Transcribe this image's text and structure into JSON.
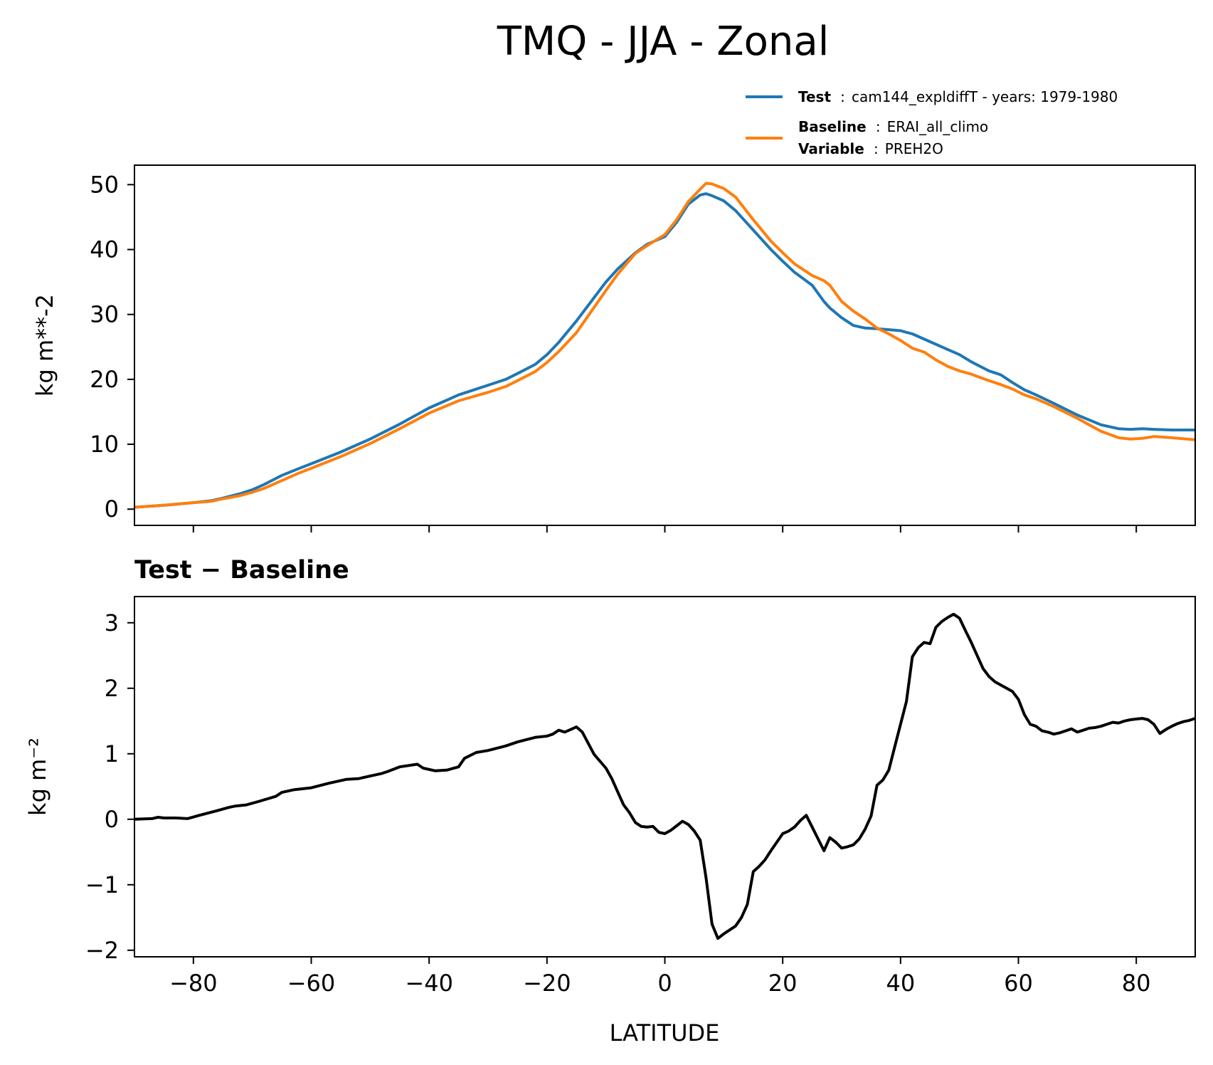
{
  "title": "TMQ - JJA - Zonal",
  "legend": {
    "test": {
      "key": "Test",
      "sep": ":",
      "value": "cam144_expldiffT - years: 1979-1980",
      "color": "#1f77b4"
    },
    "baseline": {
      "key": "Baseline",
      "sep": ":",
      "value": "ERAI_all_climo",
      "color": "#ff7f0e"
    },
    "variable": {
      "key": "Variable",
      "sep": ":",
      "value": "PREH2O"
    }
  },
  "chart_data": [
    {
      "type": "line",
      "title": "",
      "xlabel": "",
      "ylabel": "kg m**-2",
      "xlim": [
        -90,
        90
      ],
      "ylim": [
        -2.5,
        53
      ],
      "yticks": [
        0,
        10,
        20,
        30,
        40,
        50
      ],
      "grid": false,
      "legend_position": "above-right",
      "series": [
        {
          "name": "Test",
          "color": "#1f77b4",
          "x": [
            -90,
            -85,
            -80,
            -77,
            -75,
            -72,
            -70,
            -68,
            -65,
            -62,
            -60,
            -55,
            -50,
            -45,
            -40,
            -35,
            -30,
            -27,
            -25,
            -22,
            -20,
            -18,
            -15,
            -12,
            -10,
            -8,
            -5,
            -3,
            0,
            2,
            4,
            6,
            7,
            8,
            10,
            12,
            15,
            18,
            20,
            22,
            25,
            27,
            28,
            30,
            32,
            34,
            36,
            40,
            42,
            45,
            48,
            50,
            52,
            55,
            57,
            59,
            61,
            63,
            66,
            70,
            74,
            77,
            79,
            81,
            83,
            86,
            90
          ],
          "y": [
            0.3,
            0.6,
            1.0,
            1.3,
            1.7,
            2.4,
            3.0,
            3.8,
            5.2,
            6.3,
            7.0,
            8.8,
            10.8,
            13.1,
            15.6,
            17.6,
            19.1,
            20.0,
            20.9,
            22.3,
            23.8,
            25.7,
            29.0,
            32.6,
            35.0,
            37.0,
            39.5,
            40.8,
            42.0,
            44.2,
            47.0,
            48.4,
            48.6,
            48.3,
            47.5,
            46.0,
            43.0,
            40.0,
            38.2,
            36.5,
            34.5,
            32.0,
            31.0,
            29.5,
            28.3,
            27.9,
            27.8,
            27.5,
            27.0,
            25.8,
            24.6,
            23.8,
            22.7,
            21.3,
            20.7,
            19.5,
            18.4,
            17.6,
            16.3,
            14.5,
            13.0,
            12.4,
            12.3,
            12.4,
            12.3,
            12.2,
            12.2
          ]
        },
        {
          "name": "Baseline",
          "color": "#ff7f0e",
          "x": [
            -90,
            -85,
            -80,
            -77,
            -75,
            -72,
            -70,
            -68,
            -65,
            -62,
            -60,
            -55,
            -50,
            -45,
            -40,
            -35,
            -30,
            -27,
            -25,
            -22,
            -20,
            -18,
            -15,
            -12,
            -10,
            -8,
            -5,
            -3,
            0,
            2,
            4,
            6,
            7,
            8,
            10,
            12,
            15,
            18,
            20,
            22,
            25,
            27,
            28,
            30,
            32,
            34,
            36,
            38,
            40,
            42,
            44,
            46,
            48,
            50,
            52,
            55,
            57,
            59,
            61,
            63,
            66,
            70,
            74,
            77,
            79,
            81,
            83,
            86,
            90
          ],
          "y": [
            0.3,
            0.6,
            1.0,
            1.2,
            1.6,
            2.1,
            2.6,
            3.2,
            4.4,
            5.6,
            6.3,
            8.1,
            10.1,
            12.4,
            14.8,
            16.7,
            18.0,
            18.9,
            19.8,
            21.2,
            22.6,
            24.3,
            27.2,
            31.1,
            33.7,
            36.2,
            39.4,
            40.6,
            42.3,
            44.6,
            47.4,
            49.3,
            50.2,
            50.1,
            49.4,
            48.1,
            44.6,
            41.3,
            39.5,
            37.8,
            36.0,
            35.2,
            34.5,
            32.0,
            30.5,
            29.3,
            27.9,
            27.0,
            26.0,
            24.8,
            24.2,
            23.0,
            22.0,
            21.3,
            20.8,
            19.8,
            19.2,
            18.5,
            17.6,
            17.0,
            15.8,
            14.0,
            12.0,
            11.0,
            10.8,
            10.9,
            11.2,
            11.0,
            10.7
          ]
        }
      ]
    },
    {
      "type": "line",
      "title": "Test − Baseline",
      "xlabel": "LATITUDE",
      "ylabel": "kg m⁻²",
      "xlim": [
        -90,
        90
      ],
      "ylim": [
        -2.1,
        3.4
      ],
      "xticks": [
        -80,
        -60,
        -40,
        -20,
        0,
        20,
        40,
        60,
        80
      ],
      "xtick_labels": [
        "−80",
        "−60",
        "−40",
        "−20",
        "0",
        "20",
        "40",
        "60",
        "80"
      ],
      "yticks": [
        -2,
        -1,
        0,
        1,
        2,
        3
      ],
      "ytick_labels": [
        "−2",
        "−1",
        "0",
        "1",
        "2",
        "3"
      ],
      "grid": false,
      "series": [
        {
          "color": "#000000",
          "x": [
            -90,
            -87,
            -86,
            -85,
            -83,
            -81,
            -79,
            -76,
            -74,
            -73,
            -71,
            -69,
            -66,
            -65,
            -63,
            -60,
            -57,
            -54,
            -52,
            -50,
            -48,
            -47,
            -45,
            -42,
            -41,
            -39,
            -37,
            -35,
            -34,
            -32,
            -30,
            -27,
            -25,
            -22,
            -20,
            -19,
            -18,
            -17,
            -16,
            -15,
            -14,
            -12,
            -10,
            -9,
            -8,
            -7,
            -6,
            -5,
            -4,
            -3,
            -2,
            -1,
            0,
            1,
            2,
            3,
            4,
            5,
            6,
            7,
            8,
            9,
            10,
            11,
            12,
            13,
            14,
            15,
            16,
            17,
            18,
            19,
            20,
            21,
            22,
            23,
            24,
            25,
            26,
            27,
            28,
            29,
            30,
            31,
            32,
            33,
            34,
            35,
            36,
            37,
            38,
            39,
            40,
            41,
            42,
            43,
            44,
            45,
            46,
            47,
            48,
            49,
            50,
            51,
            52,
            53,
            54,
            55,
            56,
            57,
            58,
            59,
            60,
            61,
            62,
            63,
            64,
            65,
            66,
            67,
            68,
            69,
            70,
            71,
            72,
            73,
            74,
            75,
            76,
            77,
            78,
            79,
            80,
            81,
            82,
            83,
            84,
            85,
            86,
            87,
            88,
            89,
            90
          ],
          "y": [
            0.0,
            0.01,
            0.03,
            0.02,
            0.02,
            0.01,
            0.06,
            0.13,
            0.18,
            0.2,
            0.22,
            0.27,
            0.35,
            0.41,
            0.45,
            0.48,
            0.55,
            0.61,
            0.62,
            0.66,
            0.7,
            0.73,
            0.8,
            0.84,
            0.78,
            0.74,
            0.75,
            0.8,
            0.93,
            1.02,
            1.05,
            1.12,
            1.18,
            1.25,
            1.27,
            1.3,
            1.36,
            1.33,
            1.37,
            1.41,
            1.33,
            0.99,
            0.78,
            0.62,
            0.42,
            0.22,
            0.1,
            -0.05,
            -0.11,
            -0.12,
            -0.11,
            -0.2,
            -0.22,
            -0.17,
            -0.1,
            -0.03,
            -0.08,
            -0.18,
            -0.32,
            -0.9,
            -1.6,
            -1.82,
            -1.75,
            -1.69,
            -1.63,
            -1.5,
            -1.3,
            -0.8,
            -0.72,
            -0.62,
            -0.48,
            -0.35,
            -0.22,
            -0.18,
            -0.12,
            -0.02,
            0.06,
            -0.12,
            -0.3,
            -0.48,
            -0.28,
            -0.35,
            -0.44,
            -0.42,
            -0.39,
            -0.3,
            -0.15,
            0.05,
            0.52,
            0.6,
            0.75,
            1.1,
            1.45,
            1.8,
            2.48,
            2.62,
            2.7,
            2.68,
            2.93,
            3.02,
            3.08,
            3.13,
            3.07,
            2.88,
            2.7,
            2.5,
            2.3,
            2.18,
            2.1,
            2.05,
            2.0,
            1.95,
            1.83,
            1.6,
            1.45,
            1.42,
            1.35,
            1.33,
            1.3,
            1.32,
            1.35,
            1.38,
            1.33,
            1.36,
            1.39,
            1.4,
            1.42,
            1.45,
            1.48,
            1.47,
            1.5,
            1.52,
            1.53,
            1.54,
            1.52,
            1.45,
            1.31,
            1.37,
            1.42,
            1.46,
            1.49,
            1.51,
            1.54
          ]
        }
      ]
    }
  ]
}
